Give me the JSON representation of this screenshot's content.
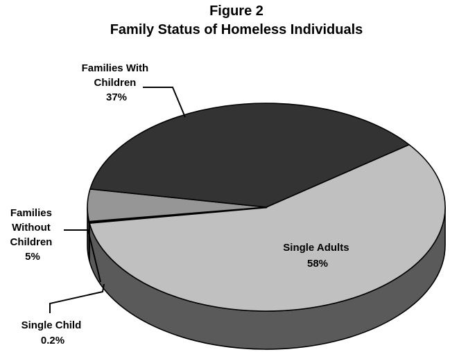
{
  "chart_data": {
    "type": "pie",
    "title": "Figure 2",
    "subtitle": "Family Status of Homeless Individuals",
    "three_d": true,
    "legend": "none",
    "slices": [
      {
        "label_lines": [
          "Single Adults"
        ],
        "value_label": "58%",
        "value": 58,
        "color": "#c0c0c0"
      },
      {
        "label_lines": [
          "Single Child"
        ],
        "value_label": "0.2%",
        "value": 0.2,
        "color": "#c0c0c0"
      },
      {
        "label_lines": [
          "Families",
          "Without",
          "Children"
        ],
        "value_label": "5%",
        "value": 5,
        "color": "#969696"
      },
      {
        "label_lines": [
          "Families With",
          "Children"
        ],
        "value_label": "37%",
        "value": 37,
        "color": "#333333"
      }
    ]
  }
}
